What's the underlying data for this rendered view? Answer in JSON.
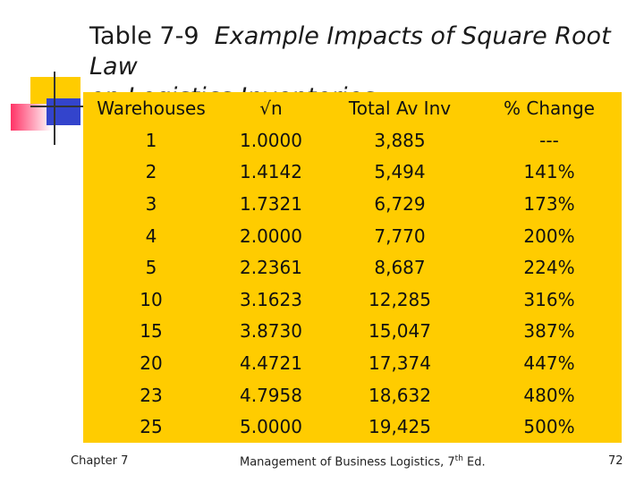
{
  "slide": {
    "title_prefix": "Table 7-9",
    "title_italic_1": "Example Impacts of Square Root Law",
    "title_italic_2": "on Logistics Inventories"
  },
  "table": {
    "headers": [
      "Warehouses",
      "√n",
      "Total Av Inv",
      "% Change"
    ],
    "rows": [
      [
        "1",
        "1.0000",
        "3,885",
        "---"
      ],
      [
        "2",
        "1.4142",
        "5,494",
        "141%"
      ],
      [
        "3",
        "1.7321",
        "6,729",
        "173%"
      ],
      [
        "4",
        "2.0000",
        "7,770",
        "200%"
      ],
      [
        "5",
        "2.2361",
        "8,687",
        "224%"
      ],
      [
        "10",
        "3.1623",
        "12,285",
        "316%"
      ],
      [
        "15",
        "3.8730",
        "15,047",
        "387%"
      ],
      [
        "20",
        "4.4721",
        "17,374",
        "447%"
      ],
      [
        "23",
        "4.7958",
        "18,632",
        "480%"
      ],
      [
        "25",
        "5.0000",
        "19,425",
        "500%"
      ]
    ]
  },
  "footer": {
    "chapter": "Chapter 7",
    "book": "Management of Business Logistics, 7",
    "edition_sup": "th",
    "edition_suffix": " Ed.",
    "page": "72"
  },
  "colors": {
    "table_background": "#ffcc00",
    "logo_yellow": "#ffcc00",
    "logo_blue": "#3344cc",
    "logo_pink": "#ff3366"
  }
}
